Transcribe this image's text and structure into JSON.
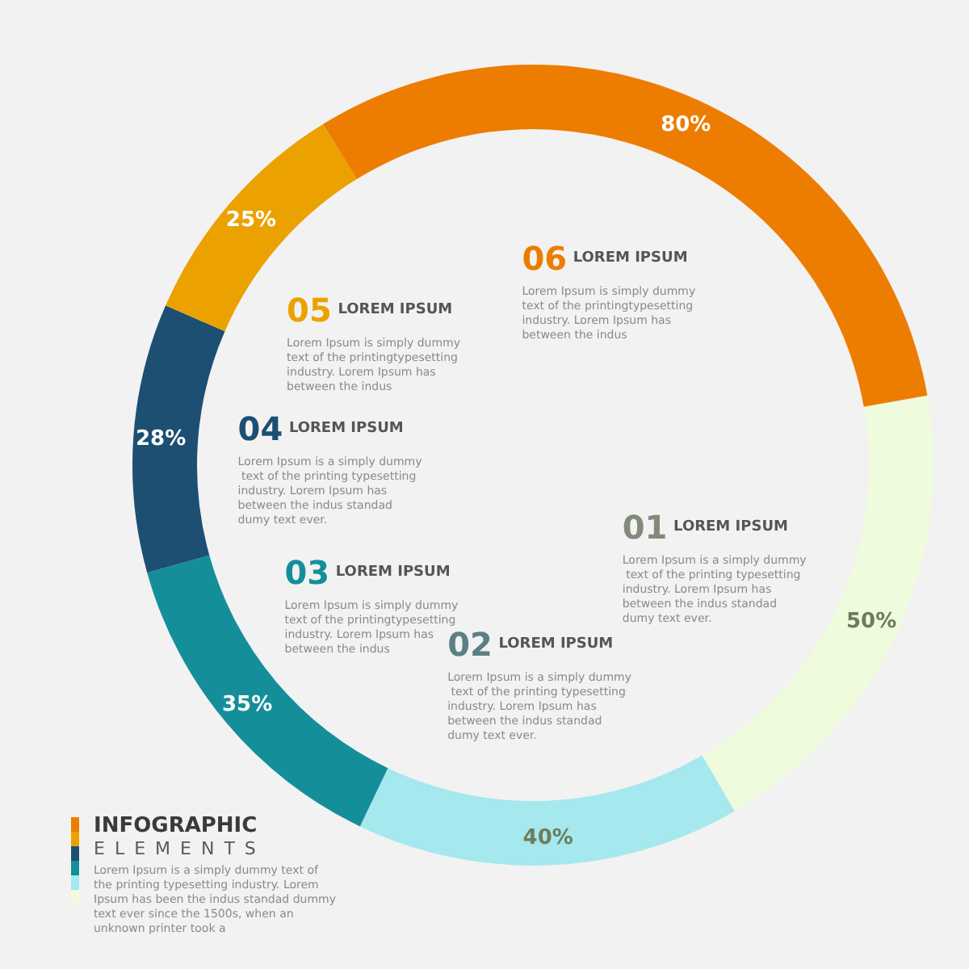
{
  "chart_data": {
    "type": "donut",
    "categories": [
      "01",
      "02",
      "03",
      "04",
      "05",
      "06"
    ],
    "values": [
      50,
      40,
      35,
      28,
      25,
      80
    ],
    "colors": [
      "#eefbdc",
      "#a5e8ee",
      "#148f99",
      "#1d4f72",
      "#eba200",
      "#ed7d00"
    ],
    "value_labels": [
      "50%",
      "40%",
      "35%",
      "28%",
      "25%",
      "80%"
    ],
    "annotations": [
      "LOREM IPSUM",
      "LOREM IPSUM",
      "LOREM IPSUM",
      "LOREM IPSUM",
      "LOREM IPSUM",
      "LOREM IPSUM",
      "Lorem Ipsum is a simply dummy text of the printing typesetting industry. Lorem Ipsum has between the indus standad dumy text ever.",
      "Lorem Ipsum is a simply dummy text of the printing typesetting industry. Lorem Ipsum has between the indus standad dumy text ever.",
      "Lorem Ipsum is simply dummy text of the printingtypesetting industry. Lorem Ipsum has between the indus",
      "Lorem Ipsum is a simply dummy text of the printing typesetting industry. Lorem Ipsum has between the indus standad dumy text ever.",
      "Lorem Ipsum is simply dummy text of the printingtypesetting industry. Lorem Ipsum has between the indus",
      "Lorem Ipsum is simply dummy text of the printingtypesetting industry. Lorem Ipsum has between the indus",
      "INFOGRAPHIC",
      "ELEMENTS",
      "Lorem Ipsum is a simply dummy text of the printing typesetting industry. Lorem Ipsum has been the indus standad dummy text ever since the 1500s, when an unknown printer took a"
    ]
  }
}
